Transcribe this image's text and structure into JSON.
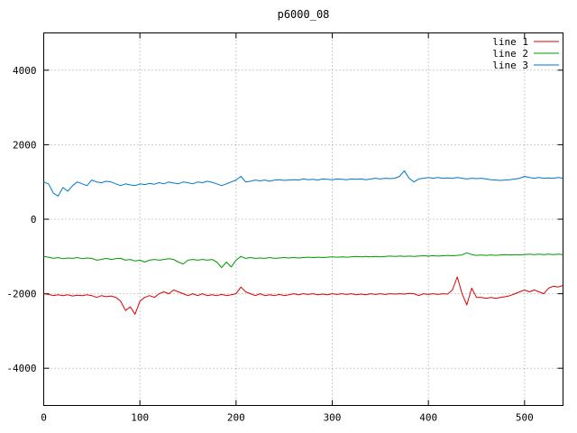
{
  "title": "p6000_08",
  "chart_data": {
    "type": "line",
    "title": "p6000_08",
    "xlabel": "",
    "ylabel": "",
    "xlim": [
      0,
      540
    ],
    "ylim": [
      -5000,
      5000
    ],
    "xticks": [
      0,
      100,
      200,
      300,
      400,
      500
    ],
    "yticks": [
      -4000,
      -2000,
      0,
      2000,
      4000
    ],
    "grid": true,
    "grid_style": "dotted",
    "legend_position": "top-right",
    "background": "#ffffff",
    "border_color": "#000000",
    "grid_color": "#9a9a9a",
    "x": [
      0,
      5,
      10,
      15,
      20,
      25,
      30,
      35,
      40,
      45,
      50,
      55,
      60,
      65,
      70,
      75,
      80,
      85,
      90,
      95,
      100,
      105,
      110,
      115,
      120,
      125,
      130,
      135,
      140,
      145,
      150,
      155,
      160,
      165,
      170,
      175,
      180,
      185,
      190,
      195,
      200,
      205,
      210,
      215,
      220,
      225,
      230,
      235,
      240,
      245,
      250,
      255,
      260,
      265,
      270,
      275,
      280,
      285,
      290,
      295,
      300,
      305,
      310,
      315,
      320,
      325,
      330,
      335,
      340,
      345,
      350,
      355,
      360,
      365,
      370,
      375,
      380,
      385,
      390,
      395,
      400,
      405,
      410,
      415,
      420,
      425,
      430,
      435,
      440,
      445,
      450,
      455,
      460,
      465,
      470,
      475,
      480,
      485,
      490,
      495,
      500,
      505,
      510,
      515,
      520,
      525,
      530,
      535,
      540
    ],
    "series": [
      {
        "name": "line 1",
        "color": "#dd0000",
        "values": [
          -2000,
          -2020,
          -2050,
          -2030,
          -2050,
          -2030,
          -2060,
          -2040,
          -2050,
          -2030,
          -2050,
          -2100,
          -2050,
          -2080,
          -2060,
          -2100,
          -2200,
          -2450,
          -2350,
          -2550,
          -2200,
          -2100,
          -2050,
          -2100,
          -2000,
          -1950,
          -2000,
          -1900,
          -1950,
          -2000,
          -2050,
          -2000,
          -2050,
          -2000,
          -2050,
          -2030,
          -2050,
          -2020,
          -2050,
          -2030,
          -2000,
          -1820,
          -1950,
          -2000,
          -2050,
          -2000,
          -2050,
          -2030,
          -2050,
          -2020,
          -2050,
          -2030,
          -2000,
          -2030,
          -2000,
          -2020,
          -2000,
          -2030,
          -2010,
          -2030,
          -2000,
          -2020,
          -2000,
          -2020,
          -2000,
          -2030,
          -2010,
          -2030,
          -2000,
          -2020,
          -2000,
          -2020,
          -2000,
          -2010,
          -2000,
          -2010,
          -1990,
          -2000,
          -2050,
          -2000,
          -2020,
          -2000,
          -2020,
          -2000,
          -2010,
          -1900,
          -1550,
          -2000,
          -2300,
          -1850,
          -2100,
          -2100,
          -2120,
          -2100,
          -2120,
          -2100,
          -2080,
          -2050,
          -2000,
          -1950,
          -1900,
          -1950,
          -1900,
          -1950,
          -2000,
          -1850,
          -1800,
          -1820,
          -1780
        ]
      },
      {
        "name": "line 2",
        "color": "#009900",
        "values": [
          -1000,
          -1020,
          -1050,
          -1030,
          -1060,
          -1040,
          -1050,
          -1030,
          -1060,
          -1040,
          -1050,
          -1100,
          -1080,
          -1050,
          -1080,
          -1060,
          -1050,
          -1100,
          -1080,
          -1120,
          -1100,
          -1150,
          -1100,
          -1080,
          -1100,
          -1080,
          -1060,
          -1080,
          -1150,
          -1200,
          -1100,
          -1080,
          -1100,
          -1080,
          -1100,
          -1080,
          -1150,
          -1300,
          -1150,
          -1280,
          -1100,
          -1000,
          -1050,
          -1030,
          -1050,
          -1040,
          -1050,
          -1030,
          -1050,
          -1040,
          -1030,
          -1040,
          -1030,
          -1040,
          -1030,
          -1020,
          -1030,
          -1020,
          -1030,
          -1020,
          -1010,
          -1020,
          -1010,
          -1020,
          -1010,
          -1000,
          -1010,
          -1000,
          -1010,
          -1000,
          -1010,
          -1000,
          -990,
          -1000,
          -990,
          -1000,
          -990,
          -1000,
          -990,
          -980,
          -990,
          -980,
          -990,
          -980,
          -970,
          -980,
          -970,
          -960,
          -900,
          -950,
          -970,
          -960,
          -970,
          -960,
          -970,
          -960,
          -950,
          -960,
          -950,
          -960,
          -950,
          -940,
          -950,
          -940,
          -950,
          -940,
          -950,
          -940,
          -950
        ]
      },
      {
        "name": "line 3",
        "color": "#0077cc",
        "values": [
          1000,
          950,
          700,
          620,
          850,
          750,
          900,
          1000,
          950,
          900,
          1050,
          1000,
          980,
          1020,
          1000,
          950,
          900,
          950,
          920,
          900,
          950,
          930,
          960,
          940,
          980,
          950,
          1000,
          970,
          950,
          1000,
          980,
          950,
          1000,
          980,
          1020,
          990,
          950,
          900,
          950,
          1000,
          1050,
          1150,
          1000,
          1020,
          1050,
          1030,
          1050,
          1020,
          1050,
          1060,
          1040,
          1050,
          1060,
          1050,
          1080,
          1060,
          1070,
          1050,
          1080,
          1070,
          1060,
          1080,
          1070,
          1060,
          1080,
          1070,
          1080,
          1060,
          1080,
          1100,
          1080,
          1100,
          1090,
          1100,
          1150,
          1300,
          1100,
          1000,
          1080,
          1100,
          1120,
          1100,
          1120,
          1100,
          1110,
          1100,
          1120,
          1100,
          1080,
          1100,
          1090,
          1100,
          1080,
          1060,
          1050,
          1040,
          1050,
          1060,
          1080,
          1100,
          1150,
          1120,
          1100,
          1120,
          1100,
          1110,
          1100,
          1120,
          1100
        ]
      }
    ]
  }
}
